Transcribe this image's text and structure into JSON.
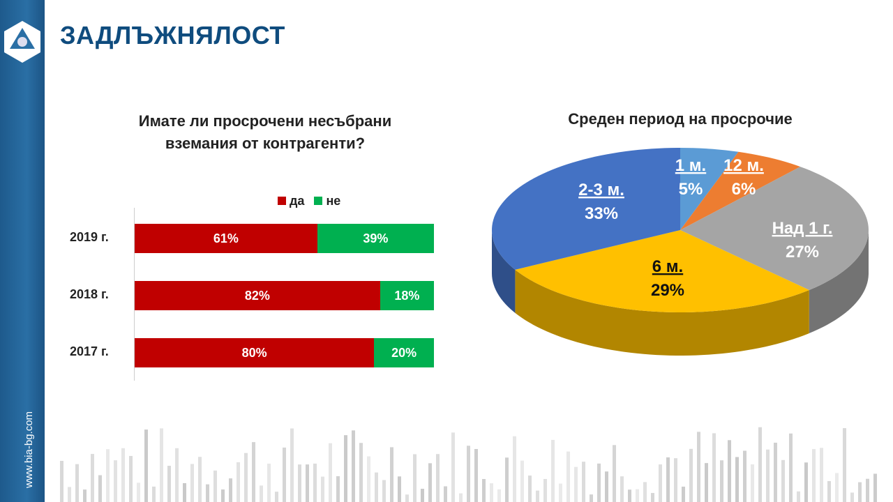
{
  "header": {
    "title": "ЗАДЛЪЖНЯЛОСТ",
    "site": "www.bia-bg.com"
  },
  "colors": {
    "brand": "#0f4c7e",
    "yes": "#c00000",
    "no": "#00b050"
  },
  "chart_data": [
    {
      "type": "bar",
      "title": "Имате ли просрочени несъбрани вземания от контрагенти?",
      "categories": [
        "2019 г.",
        "2018 г.",
        "2017 г."
      ],
      "series": [
        {
          "name": "да",
          "color": "#c00000",
          "values": [
            61,
            82,
            80
          ],
          "labels": [
            "61%",
            "82%",
            "80%"
          ]
        },
        {
          "name": "не",
          "color": "#00b050",
          "values": [
            39,
            18,
            20
          ],
          "labels": [
            "39%",
            "18%",
            "20%"
          ]
        }
      ],
      "stacked": true,
      "xlim": [
        0,
        100
      ]
    },
    {
      "type": "pie",
      "title": "Среден период на просрочие",
      "slices": [
        {
          "label": "1 м.",
          "value": 5,
          "text": "5%",
          "color": "#5b9bd5",
          "textcolor": "#ffffff"
        },
        {
          "label": "12 м.",
          "value": 6,
          "text": "6%",
          "color": "#ed7d31",
          "textcolor": "#ffffff"
        },
        {
          "label": "Над 1 г.",
          "value": 27,
          "text": "27%",
          "color": "#a5a5a5",
          "textcolor": "#ffffff"
        },
        {
          "label": "6 м.",
          "value": 29,
          "text": "29%",
          "color": "#ffc000",
          "textcolor": "#111111"
        },
        {
          "label": "2-3 м.",
          "value": 33,
          "text": "33%",
          "color": "#4472c4",
          "textcolor": "#ffffff"
        }
      ]
    }
  ]
}
